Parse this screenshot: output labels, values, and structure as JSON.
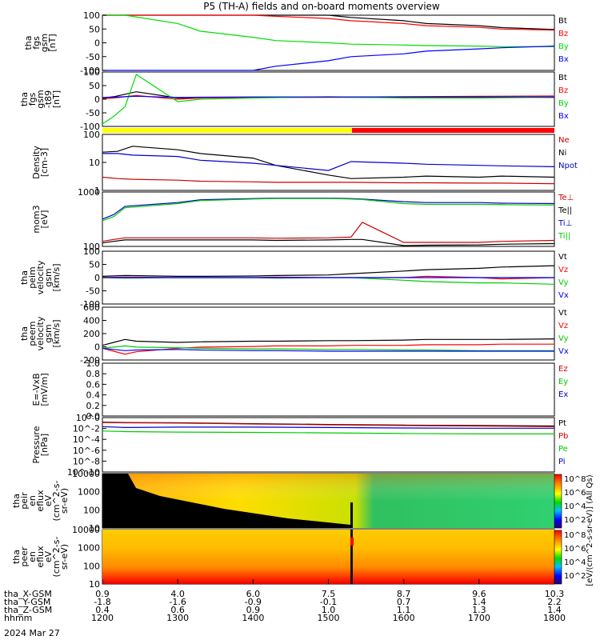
{
  "title": "P5 (TH-A) fields and on-board moments overview",
  "time_axis": {
    "rows": [
      {
        "label": "tha_X-GSM",
        "values": [
          "0.9",
          "4.0",
          "6.0",
          "7.5",
          "8.7",
          "9.6",
          "10.3"
        ]
      },
      {
        "label": "tha_Y-GSM",
        "values": [
          "-1.8",
          "-1.6",
          "-0.9",
          "-0.1",
          "0.7",
          "1.4",
          "2.2"
        ]
      },
      {
        "label": "tha_Z-GSM",
        "values": [
          "0.4",
          "0.6",
          "0.9",
          "1.0",
          "1.1",
          "1.3",
          "1.4"
        ]
      },
      {
        "label": "hhmm",
        "values": [
          "1200",
          "1300",
          "1400",
          "1500",
          "1600",
          "1700",
          "1800"
        ]
      }
    ],
    "date": "2024 Mar 27"
  },
  "colorbar_label": "[eV/(cm^2-s-sr-eV)] (All Qs)",
  "colorbar_ticks": [
    "10^8",
    "10^6",
    "10^4",
    "10^2"
  ],
  "chart_data": [
    {
      "type": "line",
      "ylabel": [
        "tha",
        "fgs",
        "gsm",
        "[nT]"
      ],
      "ylim": [
        -100,
        100
      ],
      "yticks": [
        "100",
        "50",
        "0",
        "-50",
        "-100"
      ],
      "legend": [
        {
          "name": "Bt",
          "color": "#000000"
        },
        {
          "name": "Bz",
          "color": "#ff0000"
        },
        {
          "name": "By",
          "color": "#00dd00"
        },
        {
          "name": "Bx",
          "color": "#0000ff"
        }
      ],
      "x": [
        1200,
        1230,
        1300,
        1330,
        1400,
        1430,
        1500,
        1530,
        1600,
        1630,
        1700,
        1730,
        1800
      ],
      "series": [
        {
          "name": "Bt",
          "color": "#000000",
          "values": [
            100,
            100,
            100,
            100,
            100,
            100,
            100,
            92,
            80,
            70,
            62,
            55,
            48
          ]
        },
        {
          "name": "Bz",
          "color": "#ff0000",
          "values": [
            100,
            100,
            100,
            100,
            100,
            96,
            88,
            80,
            70,
            62,
            56,
            50,
            46
          ]
        },
        {
          "name": "By",
          "color": "#00dd00",
          "values": [
            100,
            100,
            70,
            42,
            20,
            8,
            0,
            -5,
            -8,
            -10,
            -12,
            -14,
            -14
          ]
        },
        {
          "name": "Bx",
          "color": "#0000ff",
          "values": [
            -100,
            -100,
            -100,
            -100,
            -100,
            -85,
            -65,
            -50,
            -40,
            -30,
            -22,
            -18,
            -12
          ]
        }
      ]
    },
    {
      "type": "line",
      "ylabel": [
        "tha",
        "fgs",
        "gsm",
        "-t89",
        "[nT]"
      ],
      "ylim": [
        -120,
        100
      ],
      "yticks": [
        "100",
        "50",
        "0",
        "-50",
        "-100"
      ],
      "legend": [
        {
          "name": "Bt",
          "color": "#000000"
        },
        {
          "name": "Bz",
          "color": "#ff0000"
        },
        {
          "name": "By",
          "color": "#00dd00"
        },
        {
          "name": "Bx",
          "color": "#0000ff"
        }
      ],
      "x": [
        1200,
        1215,
        1230,
        1245,
        1300,
        1330,
        1400,
        1500,
        1600,
        1700,
        1800
      ],
      "series": [
        {
          "name": "Bt",
          "color": "#000000",
          "values": [
            -5,
            0,
            10,
            20,
            -5,
            -3,
            -2,
            -2,
            -3,
            -2,
            -3
          ]
        },
        {
          "name": "Bz",
          "color": "#ff0000",
          "values": [
            -8,
            -5,
            0,
            5,
            -10,
            -5,
            -3,
            -2,
            0,
            2,
            3
          ]
        },
        {
          "name": "By",
          "color": "#00dd00",
          "values": [
            -110,
            -80,
            -40,
            90,
            -20,
            -10,
            -5,
            0,
            -5,
            -5,
            -2
          ]
        },
        {
          "name": "Bx",
          "color": "#0000ff",
          "values": [
            -3,
            -2,
            0,
            2,
            -3,
            -2,
            -1,
            -1,
            -1,
            -1,
            -1
          ]
        }
      ]
    },
    {
      "type": "line",
      "ylabel": [
        "Density",
        "[cm-3]"
      ],
      "yscale": "log",
      "ylim": [
        0.1,
        200
      ],
      "yticks": [
        "100",
        "10",
        "1"
      ],
      "legend": [
        {
          "name": "Ne",
          "color": "#cc0000"
        },
        {
          "name": "Ni",
          "color": "#000000"
        },
        {
          "name": "Npot",
          "color": "#0000cc"
        }
      ],
      "x": [
        1200,
        1220,
        1240,
        1300,
        1330,
        1400,
        1430,
        1500,
        1530,
        1600,
        1630,
        1700,
        1730,
        1800
      ],
      "series": [
        {
          "name": "Ne",
          "color": "#cc0000",
          "values": [
            0.6,
            0.5,
            0.45,
            0.4,
            0.35,
            0.32,
            0.3,
            0.3,
            0.3,
            0.28,
            0.28,
            0.27,
            0.27,
            0.25
          ]
        },
        {
          "name": "Ni",
          "color": "#000000",
          "values": [
            18,
            20,
            40,
            25,
            15,
            8,
            3,
            0.8,
            0.5,
            0.6,
            0.7,
            0.6,
            0.7,
            0.6
          ]
        },
        {
          "name": "Npot",
          "color": "#0000cc",
          "values": [
            15,
            15,
            12,
            10,
            6,
            4,
            3,
            1.5,
            5,
            4,
            3.5,
            3,
            2.8,
            2.5
          ]
        }
      ]
    },
    {
      "type": "line",
      "ylabel": [
        "mom3",
        "[eV]"
      ],
      "yscale": "log",
      "ylim": [
        70,
        9000
      ],
      "yticks": [
        "1000",
        "100"
      ],
      "legend": [
        {
          "name": "Te⊥",
          "color": "#cc0000"
        },
        {
          "name": "Te||",
          "color": "#000000"
        },
        {
          "name": "Ti⊥",
          "color": "#0000cc"
        },
        {
          "name": "Ti||",
          "color": "#00cc00"
        }
      ],
      "x": [
        1200,
        1215,
        1230,
        1300,
        1330,
        1400,
        1430,
        1500,
        1530,
        1545,
        1600,
        1630,
        1700,
        1730,
        1800
      ],
      "series": [
        {
          "name": "Te⊥",
          "color": "#cc0000",
          "values": [
            110,
            130,
            150,
            150,
            150,
            150,
            145,
            150,
            160,
            600,
            100,
            100,
            100,
            110,
            120
          ]
        },
        {
          "name": "Te||",
          "color": "#000000",
          "values": [
            95,
            110,
            125,
            125,
            125,
            125,
            120,
            125,
            130,
            130,
            75,
            78,
            80,
            85,
            90
          ]
        },
        {
          "name": "Ti⊥",
          "color": "#0000cc",
          "values": [
            800,
            1200,
            2500,
            3500,
            4500,
            5000,
            5200,
            5200,
            5000,
            4800,
            3800,
            3500,
            3500,
            3300,
            3200
          ]
        },
        {
          "name": "Ti||",
          "color": "#00cc00",
          "values": [
            700,
            1000,
            2200,
            3200,
            4200,
            4800,
            5000,
            5000,
            4800,
            4600,
            3200,
            3000,
            3000,
            2900,
            2800
          ]
        }
      ]
    },
    {
      "type": "line",
      "ylabel": [
        "tha",
        "peim",
        "velocity",
        "gsm",
        "[km/s]"
      ],
      "ylim": [
        -100,
        100
      ],
      "yticks": [
        "100",
        "50",
        "0",
        "-50",
        "-100"
      ],
      "legend": [
        {
          "name": "Vt",
          "color": "#000000"
        },
        {
          "name": "Vz",
          "color": "#ff0000"
        },
        {
          "name": "Vy",
          "color": "#00cc00"
        },
        {
          "name": "Vx",
          "color": "#0000ff"
        }
      ],
      "x": [
        1200,
        1230,
        1300,
        1330,
        1400,
        1430,
        1500,
        1530,
        1600,
        1630,
        1700,
        1730,
        1800
      ],
      "series": [
        {
          "name": "Vt",
          "color": "#000000",
          "values": [
            5,
            8,
            5,
            5,
            6,
            8,
            10,
            15,
            25,
            30,
            35,
            40,
            45
          ]
        },
        {
          "name": "Vz",
          "color": "#ff0000",
          "values": [
            0,
            2,
            0,
            0,
            0,
            2,
            0,
            0,
            0,
            5,
            0,
            -5,
            0
          ]
        },
        {
          "name": "Vy",
          "color": "#00cc00",
          "values": [
            0,
            -2,
            0,
            0,
            0,
            -2,
            0,
            0,
            -10,
            -15,
            -20,
            -20,
            -25
          ]
        },
        {
          "name": "Vx",
          "color": "#0000ff",
          "values": [
            0,
            0,
            0,
            0,
            0,
            0,
            0,
            0,
            0,
            0,
            0,
            0,
            0
          ]
        }
      ]
    },
    {
      "type": "line",
      "ylabel": [
        "tha",
        "peem",
        "velocity",
        "gsm",
        "[km/s]"
      ],
      "ylim": [
        -200,
        700
      ],
      "yticks": [
        "600",
        "400",
        "200",
        "0",
        "-200"
      ],
      "legend": [
        {
          "name": "Vt",
          "color": "#000000"
        },
        {
          "name": "Vz",
          "color": "#ff0000"
        },
        {
          "name": "Vy",
          "color": "#00cc00"
        },
        {
          "name": "Vx",
          "color": "#0000ff"
        }
      ],
      "x": [
        1200,
        1215,
        1230,
        1245,
        1300,
        1330,
        1400,
        1430,
        1500,
        1530,
        1600,
        1630,
        1700,
        1730,
        1800
      ],
      "series": [
        {
          "name": "Vt",
          "color": "#000000",
          "values": [
            50,
            100,
            150,
            120,
            100,
            110,
            120,
            120,
            130,
            130,
            140,
            150,
            150,
            150,
            160
          ]
        },
        {
          "name": "Vz",
          "color": "#ff0000",
          "values": [
            0,
            -50,
            -100,
            -60,
            0,
            20,
            30,
            40,
            40,
            50,
            50,
            60,
            60,
            70,
            70
          ]
        },
        {
          "name": "Vy",
          "color": "#00cc00",
          "values": [
            0,
            20,
            40,
            20,
            10,
            0,
            -10,
            -10,
            -20,
            -20,
            -30,
            -30,
            -40,
            -40,
            -40
          ]
        },
        {
          "name": "Vx",
          "color": "#0000ff",
          "values": [
            0,
            -20,
            -40,
            -30,
            -20,
            -30,
            -40,
            -40,
            -50,
            -50,
            -50,
            -50,
            -50,
            -50,
            -50
          ]
        }
      ]
    },
    {
      "type": "line",
      "ylabel": [
        "E=-VxB",
        "[mV/m]"
      ],
      "ylim": [
        0,
        1
      ],
      "yticks": [
        "1.0",
        "0.8",
        "0.6",
        "0.4",
        "0.2",
        "0.0"
      ],
      "legend": [
        {
          "name": "Ez",
          "color": "#cc0000"
        },
        {
          "name": "Ey",
          "color": "#00cc00"
        },
        {
          "name": "Ex",
          "color": "#0000cc"
        }
      ],
      "series": []
    },
    {
      "type": "line",
      "ylabel": [
        "Pressure",
        "[nPa]"
      ],
      "yscale": "log",
      "ylim": [
        1e-10,
        10
      ],
      "yticks": [
        "10^0",
        "10^-2",
        "10^-4",
        "10^-6",
        "10^-8",
        "10^-10"
      ],
      "legend": [
        {
          "name": "Pt",
          "color": "#000000"
        },
        {
          "name": "Pb",
          "color": "#cc0000"
        },
        {
          "name": "Pe",
          "color": "#00cc00"
        },
        {
          "name": "Pi",
          "color": "#0000cc"
        }
      ],
      "x": [
        1200,
        1230,
        1300,
        1400,
        1500,
        1600,
        1700,
        1800
      ],
      "series": [
        {
          "name": "Pt",
          "color": "#000000",
          "values": [
            1.2,
            1.0,
            0.9,
            0.6,
            0.4,
            0.3,
            0.25,
            0.2
          ]
        },
        {
          "name": "Pb",
          "color": "#cc0000",
          "values": [
            1.0,
            0.9,
            0.8,
            0.5,
            0.35,
            0.25,
            0.2,
            0.15
          ]
        },
        {
          "name": "Pe",
          "color": "#00cc00",
          "values": [
            0.02,
            0.015,
            0.012,
            0.01,
            0.008,
            0.006,
            0.005,
            0.005
          ]
        },
        {
          "name": "Pi",
          "color": "#0000cc",
          "values": [
            0.15,
            0.1,
            0.12,
            0.12,
            0.1,
            0.08,
            0.07,
            0.07
          ]
        }
      ]
    },
    {
      "type": "heatmap",
      "ylabel": [
        "tha",
        "peir",
        "en",
        "eflux",
        "eV",
        "(cm^2-s-",
        "sr-eV)"
      ],
      "yscale": "log",
      "ylim": [
        7,
        30000
      ],
      "yticks": [
        "10000",
        "1000",
        "100",
        "10"
      ]
    },
    {
      "type": "heatmap",
      "ylabel": [
        "tha",
        "peer",
        "en",
        "eflux",
        "eV",
        "(cm^2-s-",
        "sr-eV)"
      ],
      "yscale": "log",
      "ylim": [
        7,
        30000
      ],
      "yticks": [
        "10000",
        "1000",
        "100",
        "10"
      ]
    }
  ]
}
